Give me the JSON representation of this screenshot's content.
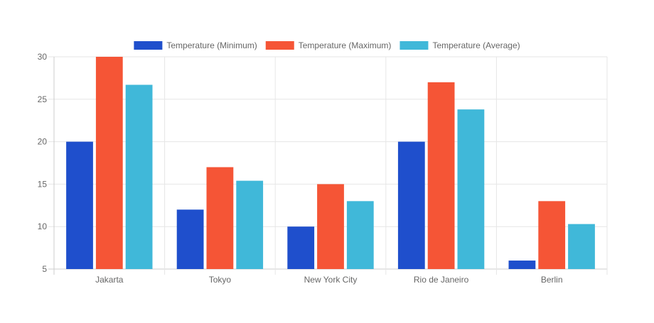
{
  "chart_data": {
    "type": "bar",
    "categories": [
      "Jakarta",
      "Tokyo",
      "New York City",
      "Rio de Janeiro",
      "Berlin"
    ],
    "series": [
      {
        "name": "Temperature (Minimum)",
        "color": "#1f4fcc",
        "values": [
          20,
          12,
          10,
          20,
          6
        ]
      },
      {
        "name": "Temperature (Maximum)",
        "color": "#f55536",
        "values": [
          30,
          17,
          15,
          27,
          13
        ]
      },
      {
        "name": "Temperature (Average)",
        "color": "#40b8d9",
        "values": [
          26.7,
          15.4,
          13,
          23.8,
          10.3
        ]
      }
    ],
    "ylim": [
      5,
      30
    ],
    "yticks": [
      5,
      10,
      15,
      20,
      25,
      30
    ],
    "grid": true,
    "legend_position": "top",
    "title": "",
    "xlabel": "",
    "ylabel": ""
  }
}
